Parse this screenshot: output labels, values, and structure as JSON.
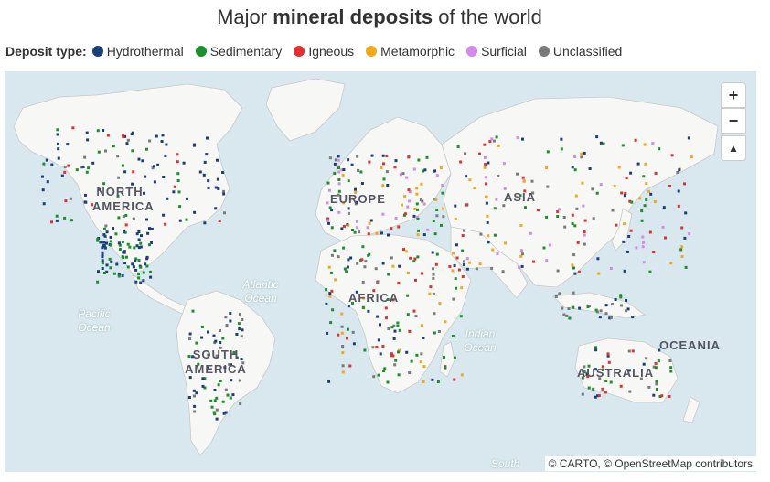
{
  "title": {
    "prefix": "Major",
    "bold": "mineral deposits",
    "suffix": "of the world"
  },
  "legend": {
    "label": "Deposit type:",
    "items": [
      {
        "name": "Hydrothermal",
        "color": "#1b3f7a"
      },
      {
        "name": "Sedimentary",
        "color": "#1a8f2b"
      },
      {
        "name": "Igneous",
        "color": "#e0302f"
      },
      {
        "name": "Metamorphic",
        "color": "#f0a81c"
      },
      {
        "name": "Surficial",
        "color": "#d48ae8"
      },
      {
        "name": "Unclassified",
        "color": "#7a7a7a"
      }
    ]
  },
  "map_labels": {
    "north_america": "NORTH AMERICA",
    "south_america": "SOUTH AMERICA",
    "europe": "EUROPE",
    "africa": "AFRICA",
    "asia": "ASIA",
    "oceania": "OCEANIA",
    "australia": "AUSTRALIA",
    "pacific": "Pacific Ocean",
    "atlantic": "Atlantic Ocean",
    "indian": "Indian Ocean",
    "south": "South"
  },
  "controls": {
    "zoom_in": "+",
    "zoom_out": "−",
    "compass": "▲"
  },
  "attribution": "© CARTO, © OpenStreetMap contributors",
  "colors": {
    "water": "#d9e8ef",
    "land": "#f7f7f5"
  }
}
